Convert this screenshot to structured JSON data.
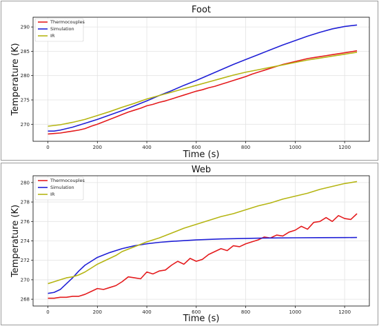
{
  "chart_data": [
    {
      "type": "line",
      "title": "Foot",
      "xlabel": "Time (s)",
      "ylabel": "Temperature (K)",
      "xlim": [
        -60,
        1300
      ],
      "ylim": [
        266.5,
        292
      ],
      "xticks": [
        0,
        200,
        400,
        600,
        800,
        1000,
        1200
      ],
      "yticks": [
        270,
        275,
        280,
        285,
        290
      ],
      "grid": true,
      "legend_position": "top-left",
      "series": [
        {
          "name": "Thermocouples",
          "color": "#e41a1c",
          "x": [
            0,
            25,
            50,
            75,
            100,
            125,
            150,
            175,
            200,
            225,
            250,
            275,
            300,
            325,
            350,
            375,
            400,
            425,
            450,
            475,
            500,
            525,
            550,
            575,
            600,
            625,
            650,
            675,
            700,
            725,
            750,
            775,
            800,
            825,
            850,
            875,
            900,
            925,
            950,
            975,
            1000,
            1025,
            1050,
            1075,
            1100,
            1125,
            1150,
            1175,
            1200,
            1225,
            1250
          ],
          "values": [
            268.0,
            268.1,
            268.2,
            268.4,
            268.6,
            268.8,
            269.1,
            269.6,
            270.0,
            270.5,
            271.0,
            271.5,
            272.0,
            272.5,
            272.9,
            273.3,
            273.8,
            274.1,
            274.5,
            274.8,
            275.2,
            275.6,
            276.0,
            276.4,
            276.8,
            277.1,
            277.5,
            277.8,
            278.2,
            278.6,
            279.0,
            279.4,
            279.8,
            280.3,
            280.7,
            281.1,
            281.5,
            281.9,
            282.3,
            282.6,
            282.9,
            283.2,
            283.5,
            283.7,
            283.9,
            284.1,
            284.3,
            284.5,
            284.7,
            284.9,
            285.1
          ]
        },
        {
          "name": "Simulation",
          "color": "#1f1fd6",
          "x": [
            0,
            25,
            50,
            100,
            150,
            200,
            250,
            300,
            350,
            400,
            450,
            500,
            550,
            600,
            650,
            700,
            750,
            800,
            850,
            900,
            950,
            1000,
            1050,
            1100,
            1150,
            1200,
            1250
          ],
          "values": [
            268.6,
            268.6,
            268.8,
            269.4,
            270.2,
            271.0,
            271.9,
            272.8,
            273.8,
            274.8,
            275.9,
            276.9,
            278.0,
            279.0,
            280.1,
            281.2,
            282.3,
            283.3,
            284.3,
            285.3,
            286.3,
            287.2,
            288.1,
            288.9,
            289.6,
            290.1,
            290.4
          ]
        },
        {
          "name": "IR",
          "color": "#b5b512",
          "x": [
            0,
            50,
            100,
            150,
            200,
            250,
            300,
            350,
            400,
            450,
            500,
            550,
            600,
            650,
            700,
            750,
            800,
            850,
            900,
            950,
            1000,
            1050,
            1100,
            1150,
            1200,
            1250
          ],
          "values": [
            269.6,
            269.9,
            270.4,
            271.0,
            271.8,
            272.6,
            273.5,
            274.3,
            275.2,
            275.9,
            276.6,
            277.3,
            278.0,
            278.7,
            279.4,
            280.1,
            280.7,
            281.2,
            281.7,
            282.2,
            282.7,
            283.2,
            283.6,
            284.0,
            284.4,
            284.8
          ]
        }
      ]
    },
    {
      "type": "line",
      "title": "Web",
      "xlabel": "Time (s)",
      "ylabel": "Temperature (K)",
      "xlim": [
        -60,
        1300
      ],
      "ylim": [
        267.3,
        280.7
      ],
      "xticks": [
        0,
        200,
        400,
        600,
        800,
        1000,
        1200
      ],
      "yticks": [
        268,
        270,
        272,
        274,
        276,
        278,
        280
      ],
      "grid": true,
      "legend_position": "top-left",
      "series": [
        {
          "name": "Thermocouples",
          "color": "#e41a1c",
          "x": [
            0,
            25,
            50,
            75,
            100,
            125,
            150,
            175,
            200,
            225,
            250,
            275,
            300,
            325,
            350,
            375,
            400,
            425,
            450,
            475,
            500,
            525,
            550,
            575,
            600,
            625,
            650,
            675,
            700,
            725,
            750,
            775,
            800,
            825,
            850,
            875,
            900,
            925,
            950,
            975,
            1000,
            1025,
            1050,
            1075,
            1100,
            1125,
            1150,
            1175,
            1200,
            1225,
            1250
          ],
          "values": [
            268.1,
            268.1,
            268.2,
            268.2,
            268.3,
            268.3,
            268.5,
            268.8,
            269.1,
            269.0,
            269.2,
            269.4,
            269.8,
            270.3,
            270.2,
            270.1,
            270.8,
            270.6,
            270.9,
            271.0,
            271.5,
            271.9,
            271.6,
            272.2,
            271.9,
            272.1,
            272.6,
            272.9,
            273.2,
            273.0,
            273.5,
            273.4,
            273.7,
            273.9,
            274.1,
            274.4,
            274.3,
            274.6,
            274.5,
            274.9,
            275.1,
            275.5,
            275.2,
            275.9,
            276.0,
            276.4,
            276.0,
            276.6,
            276.3,
            276.2,
            276.8
          ]
        },
        {
          "name": "Simulation",
          "color": "#1f1fd6",
          "x": [
            0,
            25,
            50,
            75,
            100,
            125,
            150,
            175,
            200,
            250,
            300,
            350,
            400,
            450,
            500,
            600,
            700,
            800,
            900,
            1000,
            1100,
            1200,
            1250
          ],
          "values": [
            268.6,
            268.7,
            269.0,
            269.6,
            270.2,
            270.9,
            271.5,
            271.9,
            272.3,
            272.8,
            273.2,
            273.5,
            273.7,
            273.85,
            273.95,
            274.1,
            274.2,
            274.25,
            274.3,
            274.32,
            274.33,
            274.34,
            274.35
          ]
        },
        {
          "name": "IR",
          "color": "#b5b512",
          "x": [
            0,
            25,
            50,
            75,
            100,
            125,
            150,
            175,
            200,
            225,
            250,
            275,
            300,
            350,
            400,
            450,
            500,
            550,
            600,
            650,
            700,
            750,
            800,
            850,
            900,
            950,
            1000,
            1050,
            1100,
            1150,
            1200,
            1250
          ],
          "values": [
            269.6,
            269.8,
            270.0,
            270.2,
            270.3,
            270.5,
            270.8,
            271.2,
            271.6,
            271.9,
            272.2,
            272.5,
            272.9,
            273.4,
            273.9,
            274.3,
            274.8,
            275.3,
            275.7,
            276.1,
            276.5,
            276.8,
            277.2,
            277.6,
            277.9,
            278.3,
            278.6,
            278.9,
            279.3,
            279.6,
            279.9,
            280.1
          ]
        }
      ]
    }
  ]
}
